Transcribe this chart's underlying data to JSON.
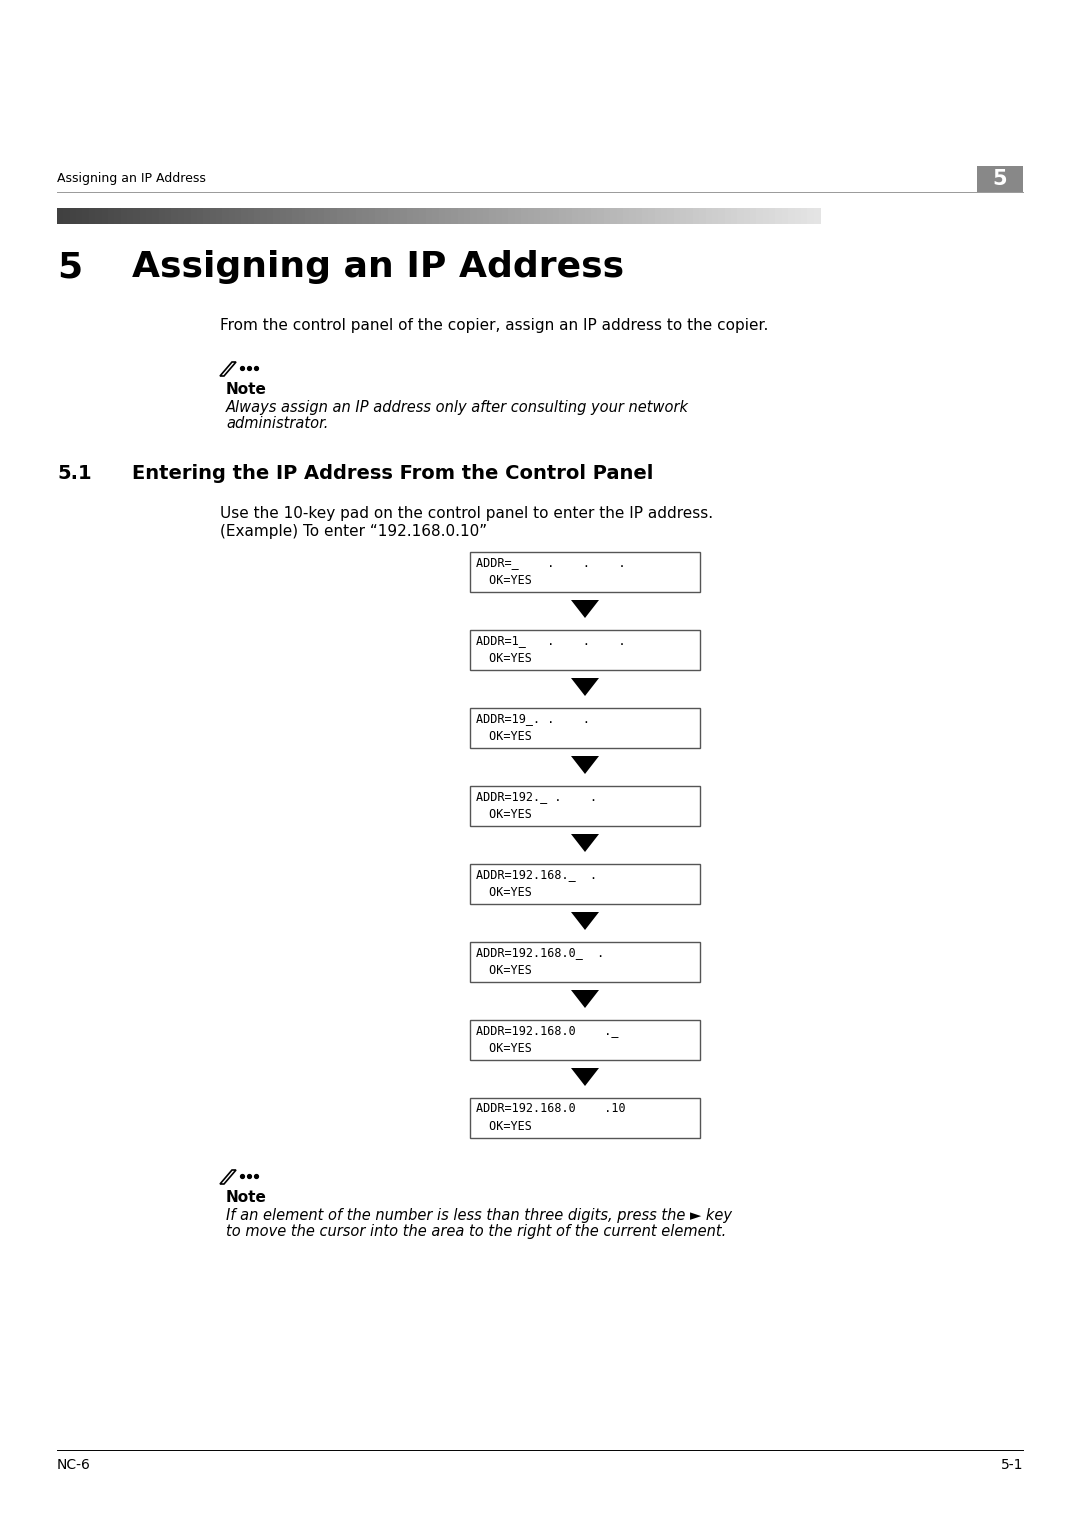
{
  "page_bg": "#ffffff",
  "header_text": "Assigning an IP Address",
  "header_chapter": "5",
  "chapter_title_num": "5",
  "chapter_title": "Assigning an IP Address",
  "intro_text": "From the control panel of the copier, assign an IP address to the copier.",
  "note1_label": "Note",
  "note1_body_line1": "Always assign an IP address only after consulting your network",
  "note1_body_line2": "administrator.",
  "section_num": "5.1",
  "section_title": "Entering the IP Address From the Control Panel",
  "section_body_line1": "Use the 10-key pad on the control panel to enter the IP address.",
  "section_body_line2": "(Example) To enter “192.168.0.10”",
  "box_line1": [
    "ADDR=_    .    .    .",
    "ADDR=1_   .    .    .",
    "ADDR=19_. .    .",
    "ADDR=192._ .    .",
    "ADDR=192.168._  .",
    "ADDR=192.168.0_  .",
    "ADDR=192.168.0    ._",
    "ADDR=192.168.0    .10"
  ],
  "box_line2": " OK=YES",
  "note2_label": "Note",
  "note2_body_line1": "If an element of the number is less than three digits, press the ► key",
  "note2_body_line2": "to move the cursor into the area to the right of the current element.",
  "footer_left": "NC-6",
  "footer_right": "5-1"
}
